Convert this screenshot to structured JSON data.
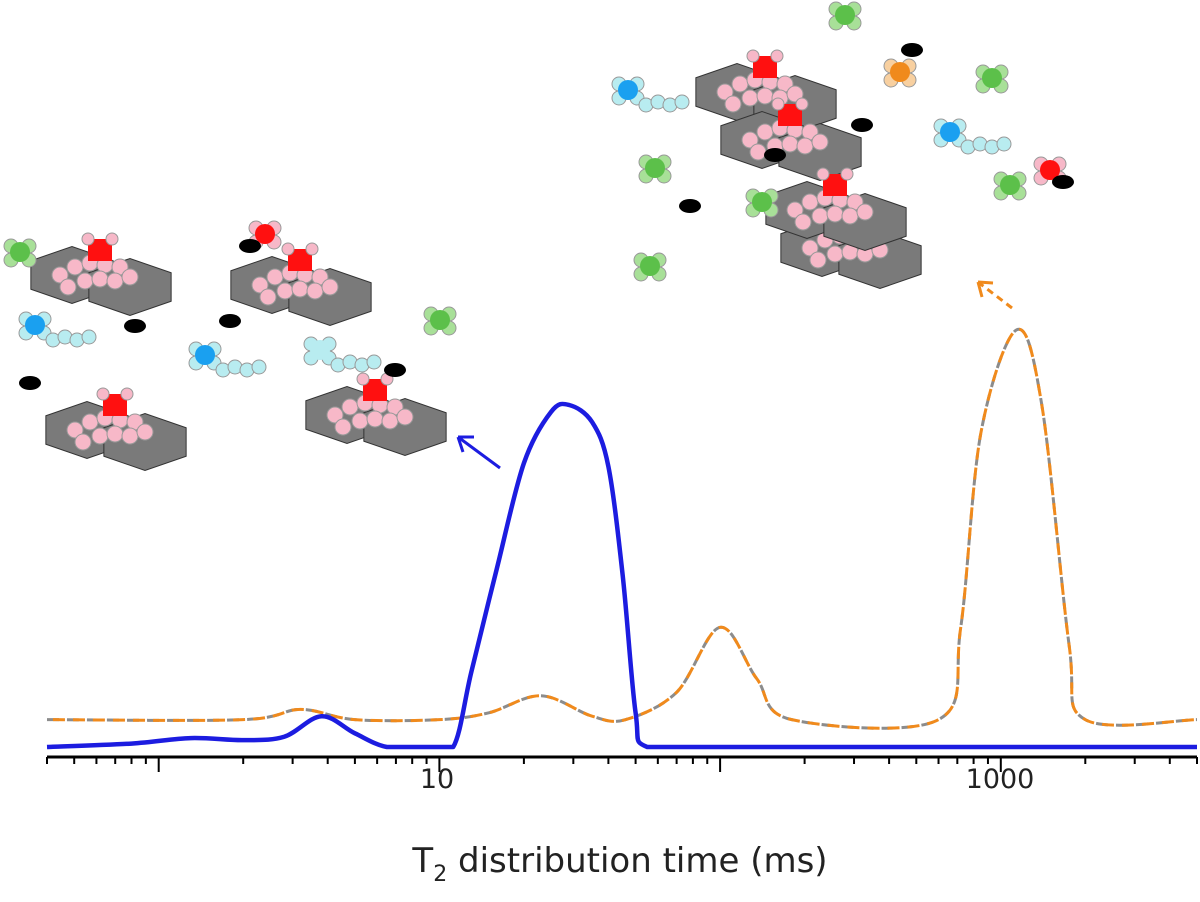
{
  "chart_data": {
    "type": "line",
    "title": "",
    "xlabel": "T",
    "xlabel_sub": "2",
    "xlabel_rest": " distribution time (ms)",
    "ylabel": "",
    "x_scale": "log",
    "xlim": [
      0.4,
      5000
    ],
    "x_tick_labels": [
      {
        "value": 10,
        "label": "10"
      },
      {
        "value": 1000,
        "label": "1000"
      }
    ],
    "y_axis_visible": false,
    "grid": false,
    "series": [
      {
        "style": "solid",
        "color": "#1c1ce0",
        "points": [
          [
            0.4,
            0
          ],
          [
            0.8,
            0.01
          ],
          [
            1.3,
            0.026
          ],
          [
            2,
            0.02
          ],
          [
            2.8,
            0.03
          ],
          [
            3.8,
            0.09
          ],
          [
            5,
            0.04
          ],
          [
            6.5,
            0
          ],
          [
            9,
            0
          ],
          [
            11.2,
            0
          ],
          [
            13,
            0.22
          ],
          [
            16,
            0.52
          ],
          [
            20,
            0.83
          ],
          [
            25,
            0.98
          ],
          [
            29,
            1.0
          ],
          [
            35,
            0.95
          ],
          [
            40,
            0.82
          ],
          [
            45,
            0.5
          ],
          [
            50,
            0.1
          ],
          [
            55,
            0
          ],
          [
            100,
            0
          ],
          [
            5000,
            0
          ]
        ]
      },
      {
        "style": "dashed",
        "color": "#f08a1c",
        "color2": "#8c8c8c",
        "points": [
          [
            0.4,
            0.08
          ],
          [
            2,
            0.08
          ],
          [
            3.2,
            0.11
          ],
          [
            5,
            0.08
          ],
          [
            10,
            0.08
          ],
          [
            15,
            0.1
          ],
          [
            23,
            0.15
          ],
          [
            35,
            0.09
          ],
          [
            46,
            0.08
          ],
          [
            70,
            0.16
          ],
          [
            100,
            0.35
          ],
          [
            135,
            0.2
          ],
          [
            180,
            0.08
          ],
          [
            600,
            0.08
          ],
          [
            720,
            0.35
          ],
          [
            850,
            0.92
          ],
          [
            1140,
            1.22
          ],
          [
            1400,
            1.0
          ],
          [
            1750,
            0.3
          ],
          [
            2000,
            0.08
          ],
          [
            5000,
            0.08
          ]
        ]
      }
    ],
    "annotations": {
      "illustration_colors": {
        "clay": "#7a7a7a",
        "cation_red": "#ff1010",
        "pink": "#f7b8c8",
        "cyan": "#1aa0f0",
        "pale_cyan": "#b8ecf0",
        "green": "#5cc04a",
        "orange": "#f08a1c",
        "black": "#000000"
      }
    }
  }
}
